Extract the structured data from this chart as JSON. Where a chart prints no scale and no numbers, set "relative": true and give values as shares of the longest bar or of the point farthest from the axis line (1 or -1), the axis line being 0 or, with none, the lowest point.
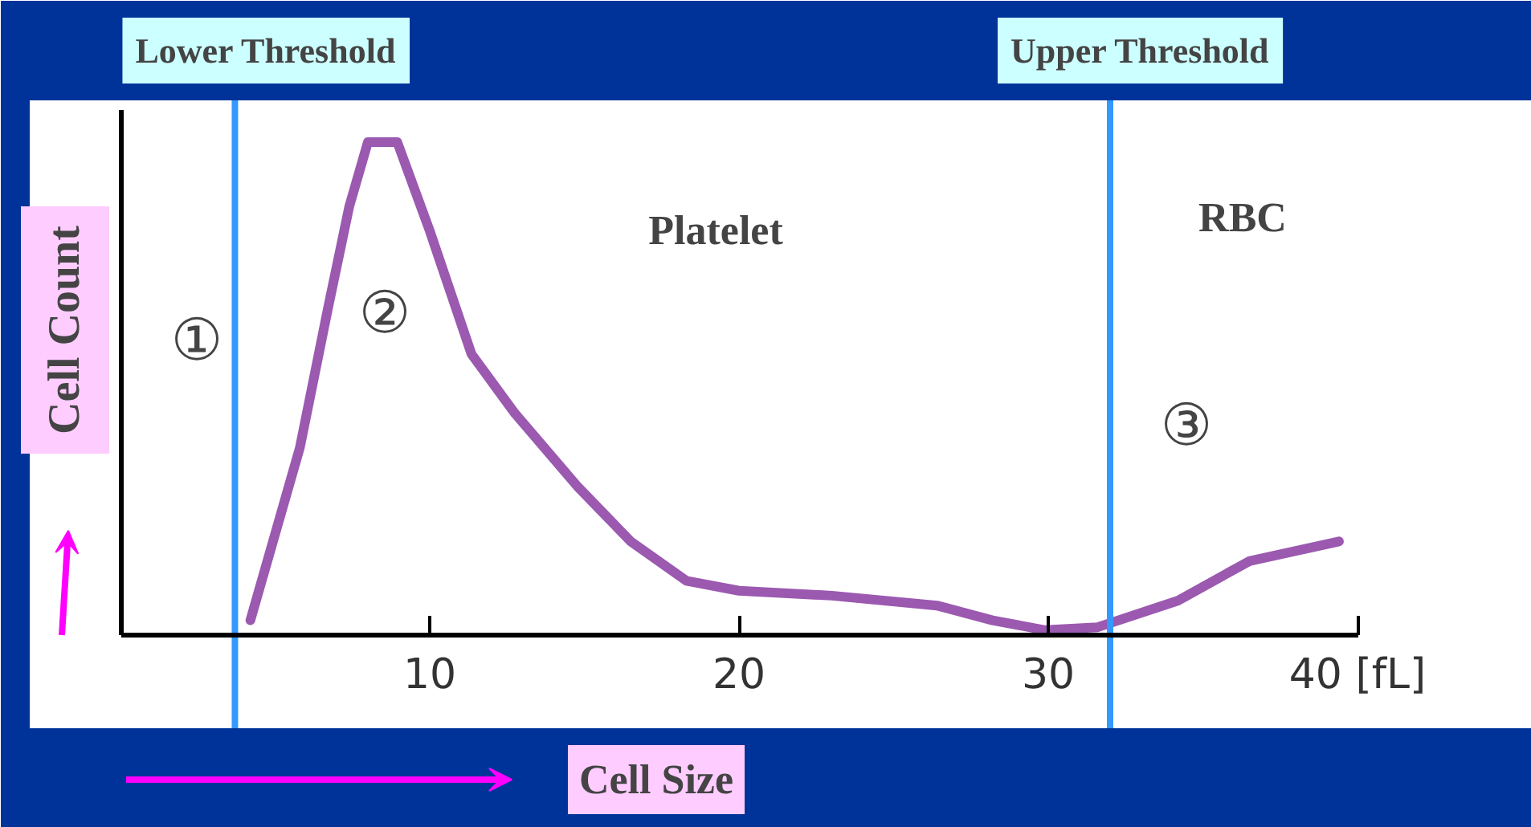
{
  "chart_data": {
    "type": "line",
    "xlabel": "Cell Size",
    "ylabel": "Cell Count",
    "relative": true,
    "x": [
      4.2,
      5.8,
      6.7,
      7.4,
      8.0,
      8.95,
      10.0,
      11.35,
      12.75,
      14.8,
      16.5,
      18.3,
      20.0,
      23.0,
      26.4,
      28.2,
      29.9,
      31.6,
      34.2,
      36.5,
      39.4
    ],
    "series": [
      {
        "color": "#9b59b0",
        "values": [
          0.03,
          0.38,
          0.66,
          0.87,
          1.0,
          1.0,
          0.82,
          0.57,
          0.45,
          0.3,
          0.19,
          0.11,
          0.09,
          0.08,
          0.06,
          0.03,
          0.01,
          0.016,
          0.07,
          0.15,
          0.19
        ]
      }
    ],
    "xlim": [
      0,
      40
    ],
    "xticks": [
      10,
      20,
      30,
      {
        "value": 40,
        "label": "40 [fL]"
      }
    ],
    "ref_lines": [
      {
        "axis": "x",
        "value": 3.7,
        "label": "Lower Threshold",
        "color": "#3399ff"
      },
      {
        "axis": "x",
        "value": 32.0,
        "label": "Upper Threshold",
        "color": "#3399ff"
      }
    ],
    "annotations": [
      "①",
      "②",
      "③",
      "Platelet",
      "RBC"
    ],
    "grid": false,
    "marker": "none",
    "line_style": "solid"
  }
}
